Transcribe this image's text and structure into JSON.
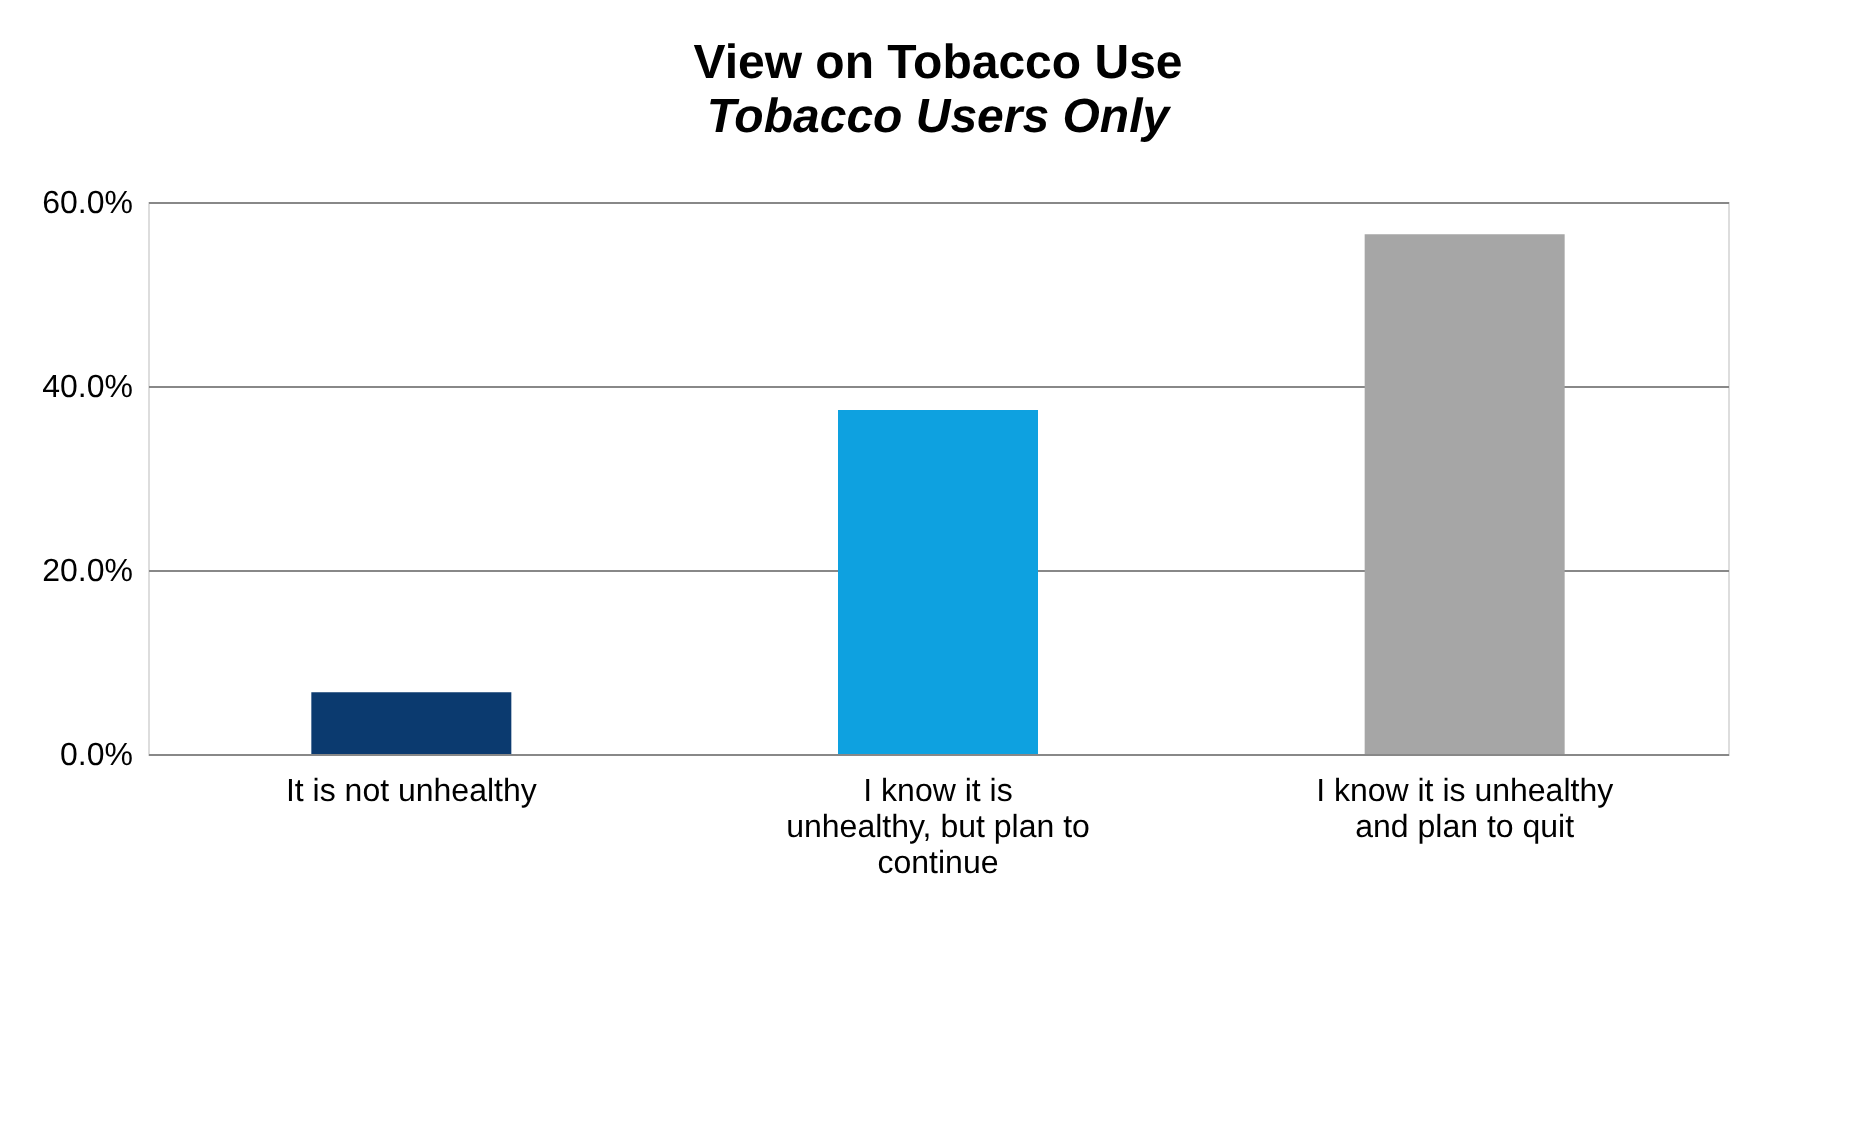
{
  "chart_data": {
    "type": "bar",
    "title": "View on Tobacco Use",
    "subtitle": "Tobacco Users Only",
    "categories": [
      "It is not unhealthy",
      "I know it is unhealthy, but plan to continue",
      "I know it is unhealthy and plan to quit"
    ],
    "values": [
      6.7,
      37.4,
      56.5
    ],
    "colors": [
      "#0b3a6f",
      "#0ea1e0",
      "#a6a6a6"
    ],
    "ylim": [
      0,
      60
    ],
    "yticks": [
      {
        "value": 0,
        "label": "0.0%"
      },
      {
        "value": 20,
        "label": "20.0%"
      },
      {
        "value": 40,
        "label": "40.0%"
      },
      {
        "value": 60,
        "label": "60.0%"
      }
    ],
    "grid": "y"
  }
}
